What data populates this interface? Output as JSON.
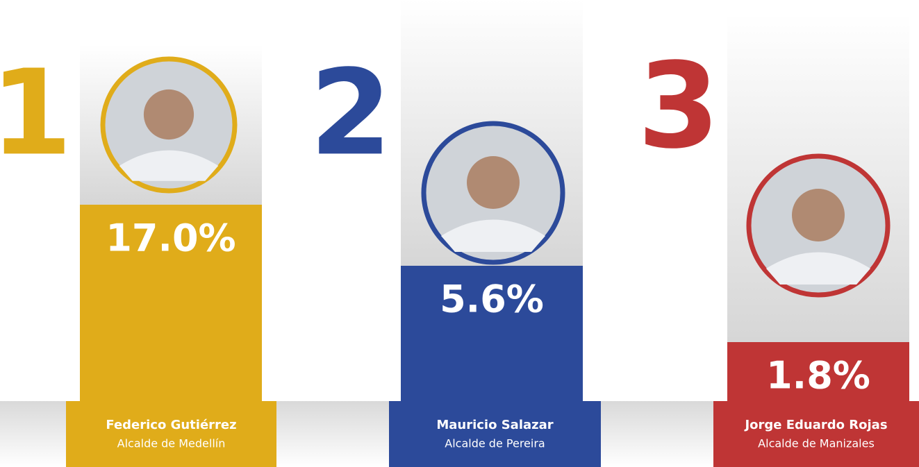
{
  "items": [
    {
      "rank": "1",
      "percent": "17.0%",
      "name": "Federico Gutiérrez",
      "role": "Alcalde de Medellín",
      "color": "#e0ac1a"
    },
    {
      "rank": "2",
      "percent": "5.6%",
      "name": "Mauricio Salazar",
      "role": "Alcalde de Pereira",
      "color": "#2c4a9a"
    },
    {
      "rank": "3",
      "percent": "1.8%",
      "name": "Jorge Eduardo Rojas",
      "role": "Alcalde de Manizales",
      "color": "#bf3535"
    }
  ]
}
